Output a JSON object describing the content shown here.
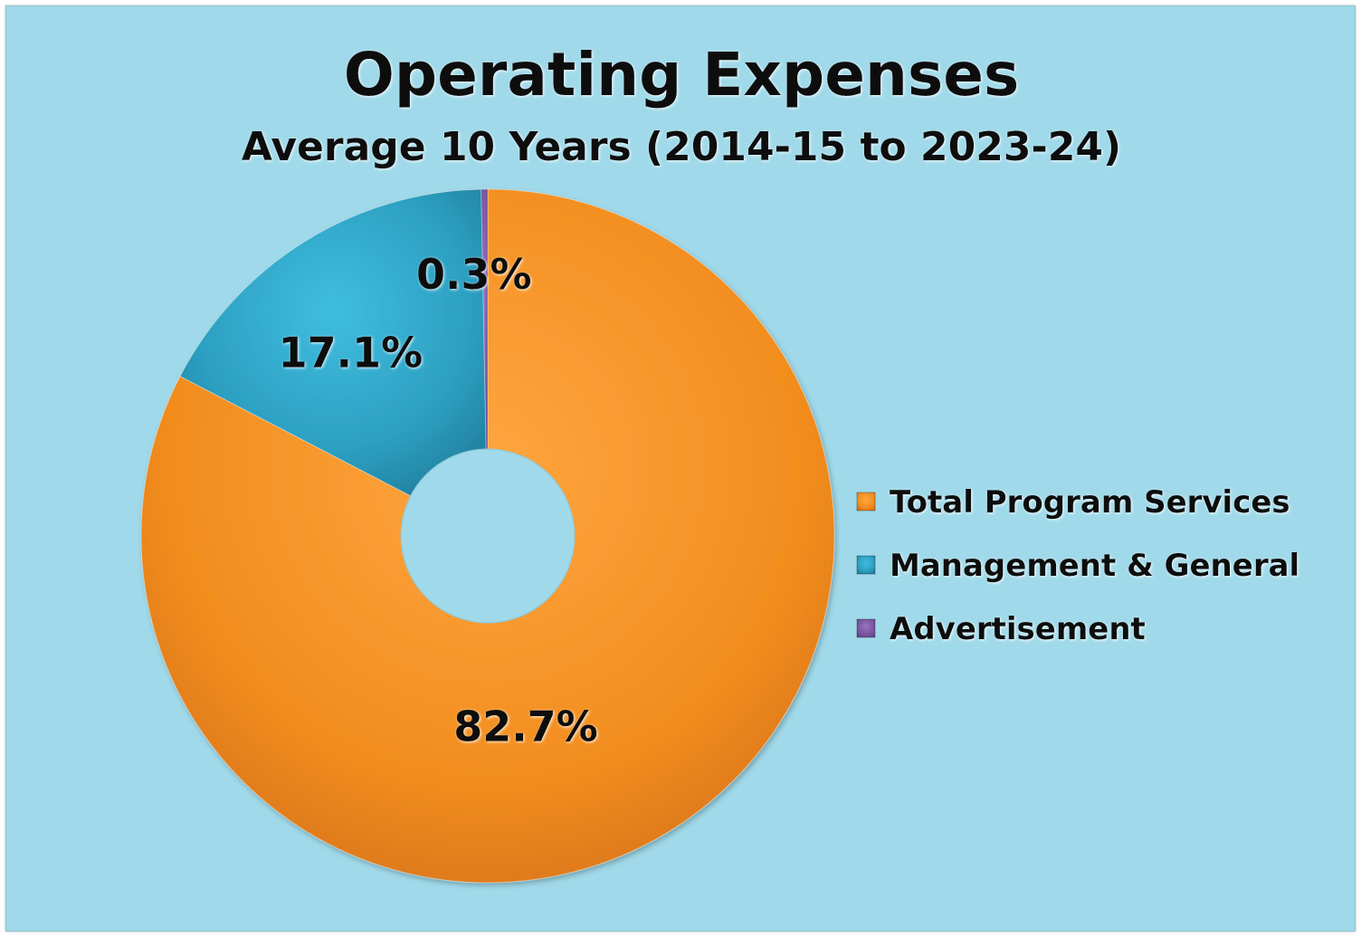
{
  "chart_data": {
    "type": "pie",
    "variant": "doughnut",
    "title": "Operating Expenses",
    "subtitle": "Average 10 Years (2014-15 to 2023-24)",
    "categories": [
      "Total Program Services",
      "Management & General",
      "Advertisement"
    ],
    "values": [
      82.7,
      17.1,
      0.3
    ],
    "data_labels": [
      "82.7%",
      "17.1%",
      "0.3%"
    ],
    "colors": [
      "#f7941d",
      "#2fa6c8",
      "#7f5aa2"
    ],
    "start_angle_deg": 0,
    "direction": "clockwise",
    "legend": {
      "position": "right",
      "entries": [
        "Total Program Services",
        "Management & General",
        "Advertisement"
      ]
    }
  },
  "colors": {
    "background": "#a0d9e9",
    "text": "#0a0a0a"
  }
}
